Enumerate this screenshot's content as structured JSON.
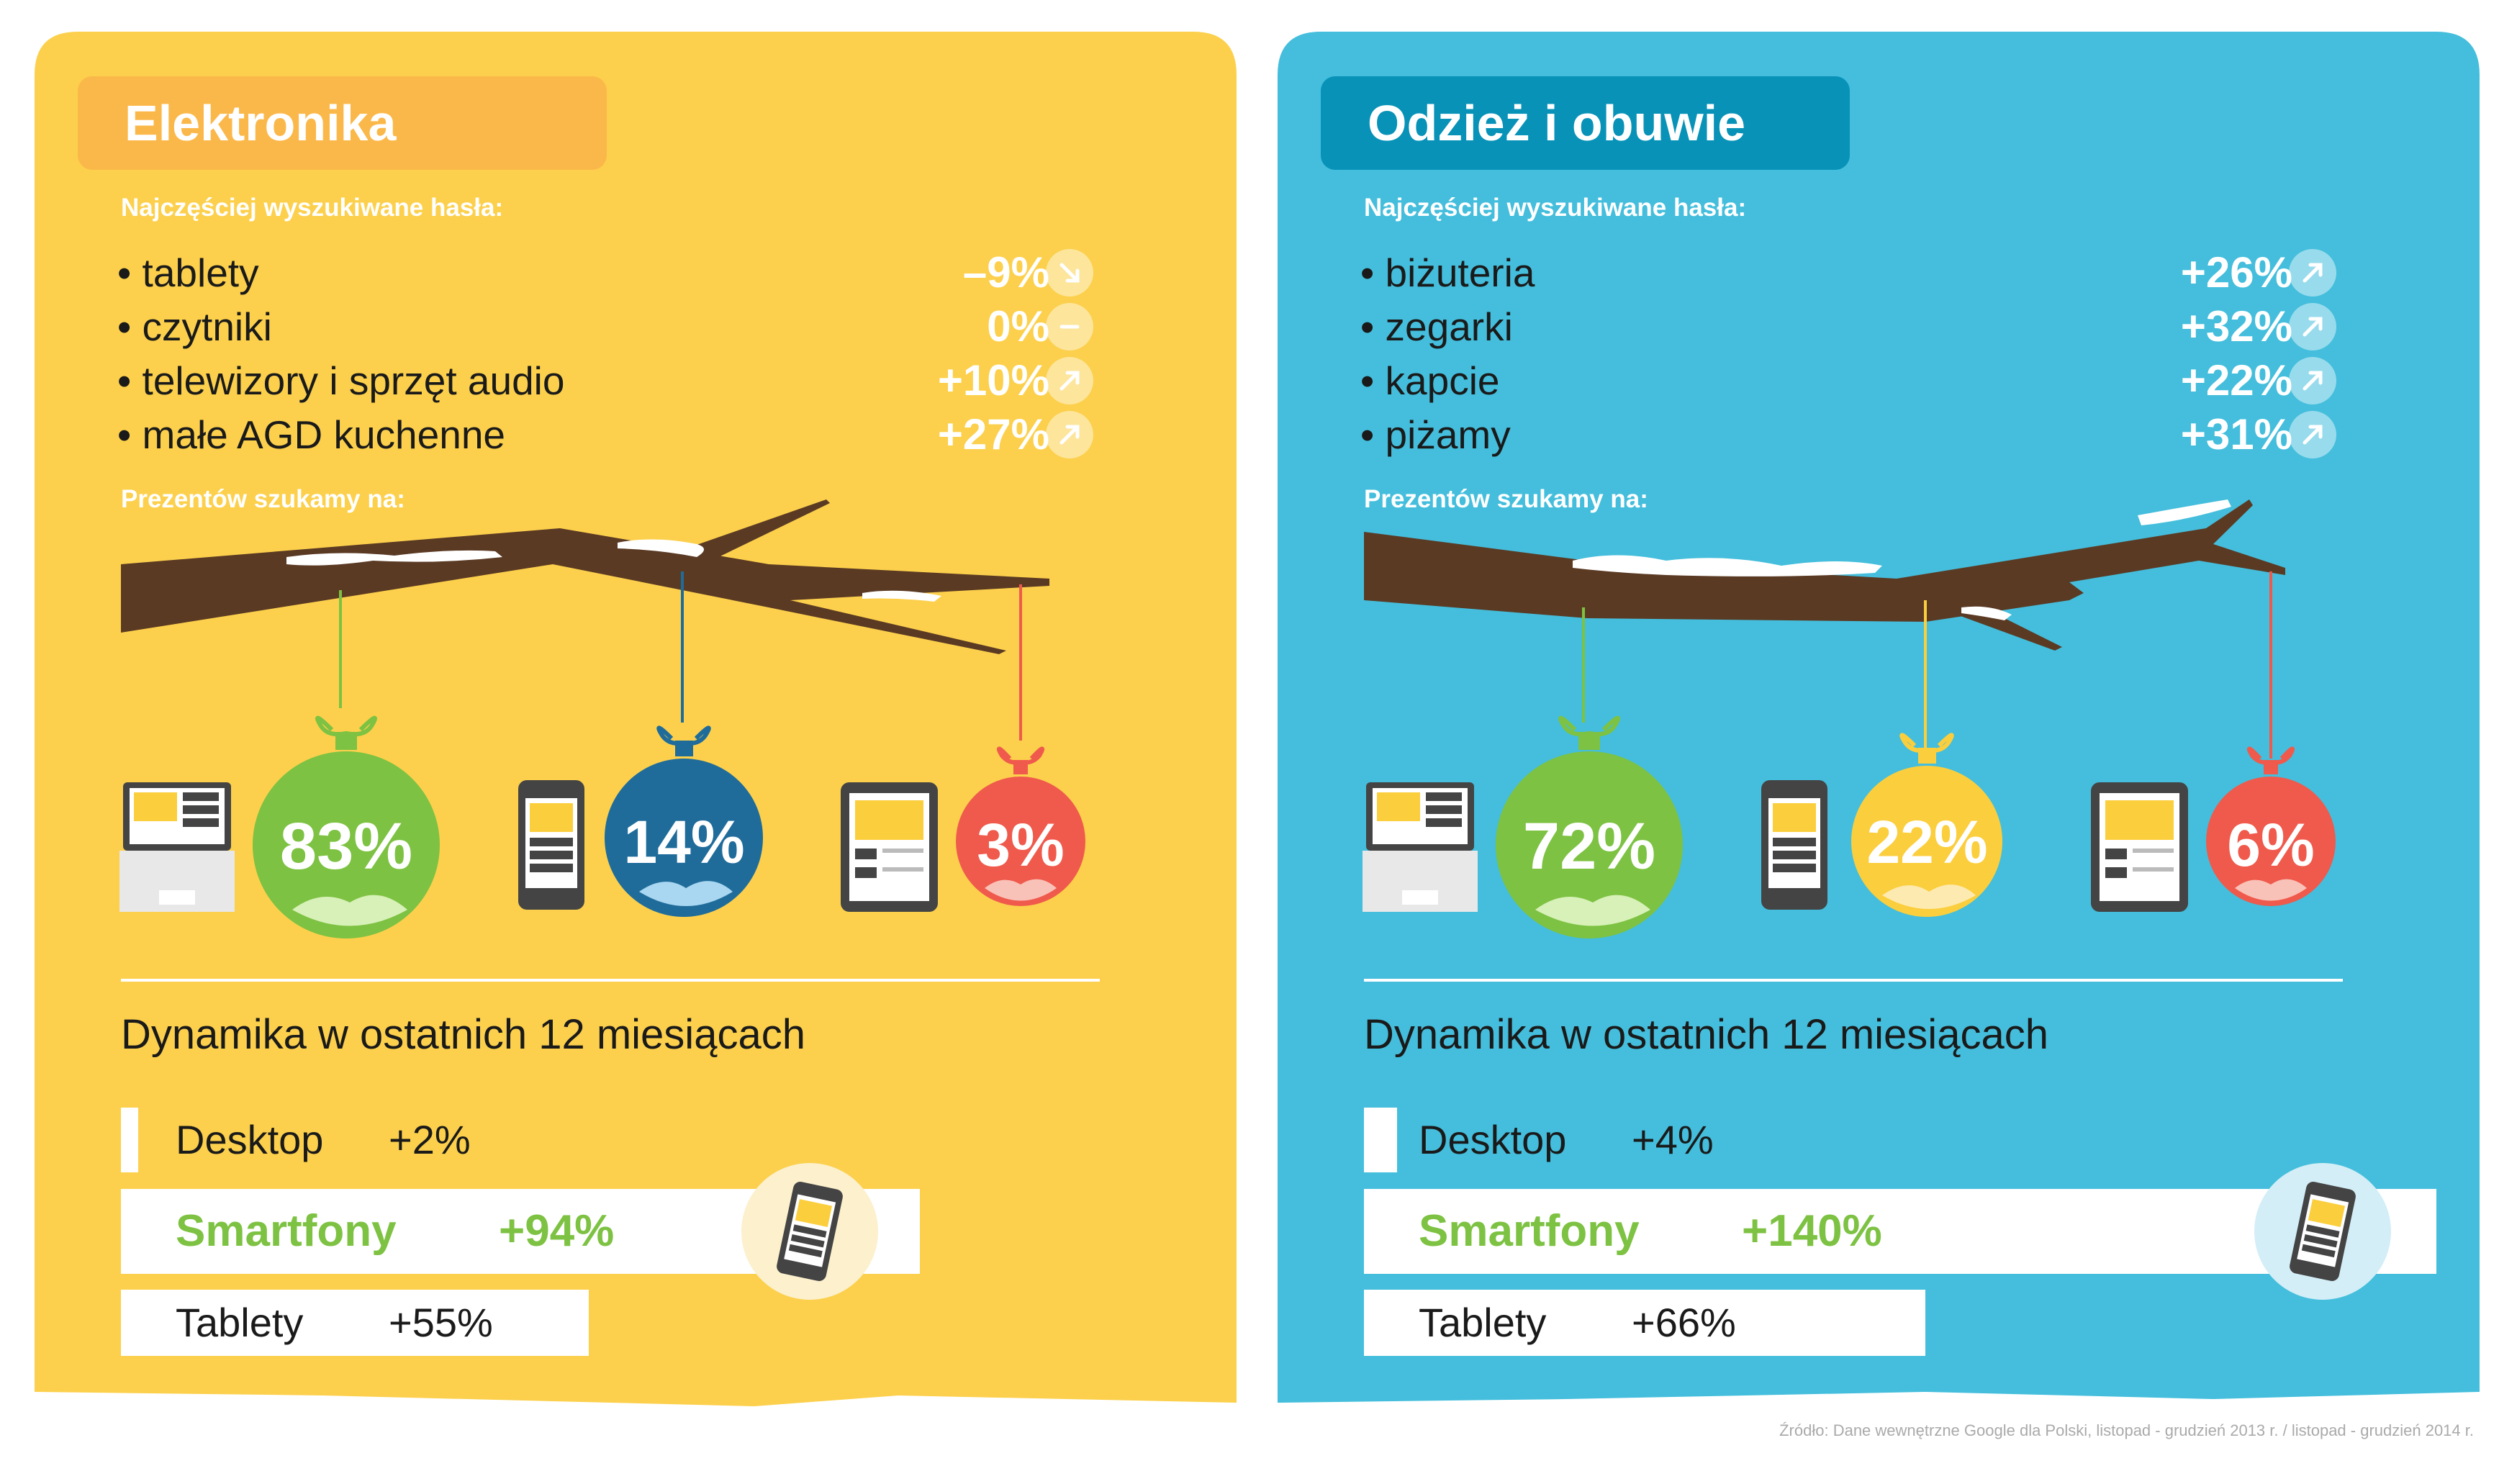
{
  "colors": {
    "yellow": "#fcd04c",
    "blue": "#44bedc",
    "orange_title": "#fbb84a",
    "blue_title": "#0892b8",
    "green": "#7dc242",
    "navy": "#1f6c9b",
    "red": "#ef5a4c",
    "gold": "#fbce3d",
    "branch": "#5b3a24"
  },
  "panels": [
    {
      "title": "Elektronika",
      "searches_label": "Najczęściej wyszukiwane hasła:",
      "terms": [
        {
          "label": "• tablety",
          "pct": "–9%",
          "trend": "down-arrow-icon"
        },
        {
          "label": "• czytniki",
          "pct": "0%",
          "trend": "dash-icon"
        },
        {
          "label": "• telewizory i sprzęt audio",
          "pct": "+10%",
          "trend": "up-arrow-icon"
        },
        {
          "label": "• małe AGD kuchenne",
          "pct": "+27%",
          "trend": "up-arrow-icon"
        }
      ],
      "gifts_label": "Prezentów szukamy na:",
      "devices": [
        {
          "icon": "laptop-icon",
          "value": "83%",
          "ornament_color": "#7dc242"
        },
        {
          "icon": "smartphone-icon",
          "value": "14%",
          "ornament_color": "#1f6c9b"
        },
        {
          "icon": "tablet-icon",
          "value": "3%",
          "ornament_color": "#ef5a4c"
        }
      ],
      "dynamics_title": "Dynamika w ostatnich 12 miesiącach",
      "dynamics": [
        {
          "label": "Desktop",
          "value": "+2%"
        },
        {
          "label": "Smartfony",
          "value": "+94%"
        },
        {
          "label": "Tablety",
          "value": "+55%"
        }
      ]
    },
    {
      "title": "Odzież i obuwie",
      "searches_label": "Najczęściej wyszukiwane hasła:",
      "terms": [
        {
          "label": "• biżuteria",
          "pct": "+26%",
          "trend": "up-arrow-icon"
        },
        {
          "label": "• zegarki",
          "pct": "+32%",
          "trend": "up-arrow-icon"
        },
        {
          "label": "• kapcie",
          "pct": "+22%",
          "trend": "up-arrow-icon"
        },
        {
          "label": "• piżamy",
          "pct": "+31%",
          "trend": "up-arrow-icon"
        }
      ],
      "gifts_label": "Prezentów szukamy na:",
      "devices": [
        {
          "icon": "laptop-icon",
          "value": "72%",
          "ornament_color": "#7dc242"
        },
        {
          "icon": "smartphone-icon",
          "value": "22%",
          "ornament_color": "#fbce3d"
        },
        {
          "icon": "tablet-icon",
          "value": "6%",
          "ornament_color": "#ef5a4c"
        }
      ],
      "dynamics_title": "Dynamika w ostatnich 12 miesiącach",
      "dynamics": [
        {
          "label": "Desktop",
          "value": "+4%"
        },
        {
          "label": "Smartfony",
          "value": "+140%"
        },
        {
          "label": "Tablety",
          "value": "+66%"
        }
      ]
    }
  ],
  "source": "Źródło: Dane wewnętrzne Google dla Polski, listopad - grudzień 2013 r. / listopad - grudzień 2014 r."
}
